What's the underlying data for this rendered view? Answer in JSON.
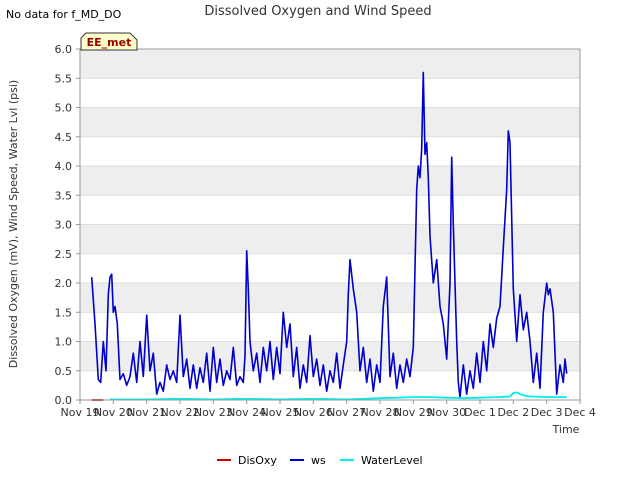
{
  "header": {
    "no_data_note": "No data for f_MD_DO",
    "badge": "EE_met"
  },
  "colors": {
    "band": "#eeeeee",
    "grid": "#dddddd",
    "axis": "#999999",
    "badge_bg": "#ffffcc"
  },
  "chart_data": {
    "type": "line",
    "title": "Dissolved Oxygen and Wind Speed",
    "xlabel": "Time",
    "ylabel": "Dissolved Oxygen (mV), Wind Speed, Water Lvl (psi)",
    "ylim": [
      0,
      6.0
    ],
    "yticks": [
      "0.0",
      "0.5",
      "1.0",
      "1.5",
      "2.0",
      "2.5",
      "3.0",
      "3.5",
      "4.0",
      "4.5",
      "5.0",
      "5.5",
      "6.0"
    ],
    "xlim": [
      0,
      15
    ],
    "xticks": [
      "Nov 19",
      "Nov 20",
      "Nov 21",
      "Nov 22",
      "Nov 23",
      "Nov 24",
      "Nov 25",
      "Nov 26",
      "Nov 27",
      "Nov 28",
      "Nov 29",
      "Nov 30",
      "Dec 1",
      "Dec 2",
      "Dec 3",
      "Dec 4"
    ],
    "legend_position": "bottom",
    "series": [
      {
        "name": "DisOxy",
        "color": "#cc0000",
        "points": [
          [
            0.35,
            0
          ],
          [
            0.7,
            0
          ]
        ]
      },
      {
        "name": "ws",
        "color": "#0000cc",
        "points": [
          [
            0.35,
            2.1
          ],
          [
            0.45,
            1.3
          ],
          [
            0.55,
            0.35
          ],
          [
            0.62,
            0.3
          ],
          [
            0.7,
            1.0
          ],
          [
            0.78,
            0.5
          ],
          [
            0.85,
            1.8
          ],
          [
            0.9,
            2.1
          ],
          [
            0.95,
            2.15
          ],
          [
            1.0,
            1.5
          ],
          [
            1.05,
            1.6
          ],
          [
            1.12,
            1.3
          ],
          [
            1.2,
            0.35
          ],
          [
            1.3,
            0.45
          ],
          [
            1.4,
            0.25
          ],
          [
            1.5,
            0.4
          ],
          [
            1.6,
            0.8
          ],
          [
            1.7,
            0.3
          ],
          [
            1.8,
            1.0
          ],
          [
            1.9,
            0.4
          ],
          [
            2.0,
            1.45
          ],
          [
            2.1,
            0.5
          ],
          [
            2.2,
            0.8
          ],
          [
            2.3,
            0.1
          ],
          [
            2.4,
            0.3
          ],
          [
            2.5,
            0.15
          ],
          [
            2.6,
            0.6
          ],
          [
            2.7,
            0.35
          ],
          [
            2.8,
            0.5
          ],
          [
            2.9,
            0.3
          ],
          [
            3.0,
            1.45
          ],
          [
            3.1,
            0.4
          ],
          [
            3.2,
            0.7
          ],
          [
            3.3,
            0.2
          ],
          [
            3.4,
            0.6
          ],
          [
            3.5,
            0.2
          ],
          [
            3.6,
            0.55
          ],
          [
            3.7,
            0.3
          ],
          [
            3.8,
            0.8
          ],
          [
            3.9,
            0.15
          ],
          [
            4.0,
            0.9
          ],
          [
            4.1,
            0.3
          ],
          [
            4.2,
            0.7
          ],
          [
            4.3,
            0.25
          ],
          [
            4.4,
            0.5
          ],
          [
            4.5,
            0.35
          ],
          [
            4.6,
            0.9
          ],
          [
            4.7,
            0.25
          ],
          [
            4.8,
            0.4
          ],
          [
            4.9,
            0.3
          ],
          [
            4.95,
            0.75
          ],
          [
            5.0,
            2.55
          ],
          [
            5.05,
            1.9
          ],
          [
            5.1,
            1.0
          ],
          [
            5.2,
            0.5
          ],
          [
            5.3,
            0.8
          ],
          [
            5.4,
            0.3
          ],
          [
            5.5,
            0.9
          ],
          [
            5.6,
            0.5
          ],
          [
            5.7,
            1.0
          ],
          [
            5.8,
            0.35
          ],
          [
            5.9,
            0.9
          ],
          [
            6.0,
            0.45
          ],
          [
            6.1,
            1.5
          ],
          [
            6.2,
            0.9
          ],
          [
            6.3,
            1.3
          ],
          [
            6.4,
            0.4
          ],
          [
            6.5,
            0.9
          ],
          [
            6.6,
            0.2
          ],
          [
            6.7,
            0.6
          ],
          [
            6.8,
            0.3
          ],
          [
            6.9,
            1.1
          ],
          [
            7.0,
            0.4
          ],
          [
            7.1,
            0.7
          ],
          [
            7.2,
            0.25
          ],
          [
            7.3,
            0.6
          ],
          [
            7.4,
            0.15
          ],
          [
            7.5,
            0.5
          ],
          [
            7.6,
            0.3
          ],
          [
            7.7,
            0.8
          ],
          [
            7.8,
            0.2
          ],
          [
            7.9,
            0.6
          ],
          [
            8.0,
            1.0
          ],
          [
            8.05,
            1.8
          ],
          [
            8.1,
            2.4
          ],
          [
            8.2,
            1.9
          ],
          [
            8.3,
            1.5
          ],
          [
            8.4,
            0.5
          ],
          [
            8.5,
            0.9
          ],
          [
            8.6,
            0.3
          ],
          [
            8.7,
            0.7
          ],
          [
            8.8,
            0.15
          ],
          [
            8.9,
            0.6
          ],
          [
            9.0,
            0.3
          ],
          [
            9.1,
            1.6
          ],
          [
            9.2,
            2.1
          ],
          [
            9.3,
            0.4
          ],
          [
            9.4,
            0.8
          ],
          [
            9.5,
            0.2
          ],
          [
            9.6,
            0.6
          ],
          [
            9.7,
            0.3
          ],
          [
            9.8,
            0.7
          ],
          [
            9.9,
            0.4
          ],
          [
            10.0,
            0.9
          ],
          [
            10.1,
            3.6
          ],
          [
            10.15,
            4.0
          ],
          [
            10.2,
            3.8
          ],
          [
            10.25,
            4.3
          ],
          [
            10.3,
            5.6
          ],
          [
            10.35,
            4.2
          ],
          [
            10.4,
            4.4
          ],
          [
            10.45,
            3.8
          ],
          [
            10.5,
            2.8
          ],
          [
            10.6,
            2.0
          ],
          [
            10.7,
            2.4
          ],
          [
            10.8,
            1.6
          ],
          [
            10.9,
            1.3
          ],
          [
            11.0,
            0.7
          ],
          [
            11.1,
            2.0
          ],
          [
            11.15,
            4.15
          ],
          [
            11.2,
            3.0
          ],
          [
            11.3,
            1.0
          ],
          [
            11.35,
            0.3
          ],
          [
            11.4,
            0.05
          ],
          [
            11.5,
            0.6
          ],
          [
            11.6,
            0.1
          ],
          [
            11.7,
            0.5
          ],
          [
            11.8,
            0.2
          ],
          [
            11.9,
            0.8
          ],
          [
            12.0,
            0.3
          ],
          [
            12.1,
            1.0
          ],
          [
            12.2,
            0.5
          ],
          [
            12.3,
            1.3
          ],
          [
            12.4,
            0.9
          ],
          [
            12.5,
            1.4
          ],
          [
            12.6,
            1.6
          ],
          [
            12.7,
            2.6
          ],
          [
            12.8,
            3.6
          ],
          [
            12.85,
            4.6
          ],
          [
            12.9,
            4.4
          ],
          [
            13.0,
            1.9
          ],
          [
            13.1,
            1.0
          ],
          [
            13.2,
            1.8
          ],
          [
            13.3,
            1.2
          ],
          [
            13.4,
            1.5
          ],
          [
            13.5,
            1.0
          ],
          [
            13.6,
            0.3
          ],
          [
            13.7,
            0.8
          ],
          [
            13.8,
            0.2
          ],
          [
            13.9,
            1.5
          ],
          [
            14.0,
            2.0
          ],
          [
            14.05,
            1.8
          ],
          [
            14.1,
            1.9
          ],
          [
            14.2,
            1.5
          ],
          [
            14.3,
            0.1
          ],
          [
            14.4,
            0.6
          ],
          [
            14.5,
            0.3
          ],
          [
            14.55,
            0.7
          ],
          [
            14.6,
            0.45
          ]
        ]
      },
      {
        "name": "WaterLevel",
        "color": "#00eeee",
        "points": [
          [
            0.9,
            0.01
          ],
          [
            2.0,
            0.01
          ],
          [
            3.0,
            0.02
          ],
          [
            4.0,
            0.01
          ],
          [
            5.0,
            0.02
          ],
          [
            6.0,
            0.01
          ],
          [
            7.0,
            0.02
          ],
          [
            8.0,
            0.01
          ],
          [
            9.0,
            0.03
          ],
          [
            9.5,
            0.04
          ],
          [
            10.0,
            0.05
          ],
          [
            10.5,
            0.05
          ],
          [
            11.0,
            0.04
          ],
          [
            11.5,
            0.03
          ],
          [
            12.0,
            0.04
          ],
          [
            12.5,
            0.05
          ],
          [
            12.9,
            0.06
          ],
          [
            13.0,
            0.12
          ],
          [
            13.1,
            0.13
          ],
          [
            13.2,
            0.1
          ],
          [
            13.3,
            0.08
          ],
          [
            13.5,
            0.06
          ],
          [
            14.0,
            0.05
          ],
          [
            14.6,
            0.05
          ]
        ]
      }
    ]
  }
}
